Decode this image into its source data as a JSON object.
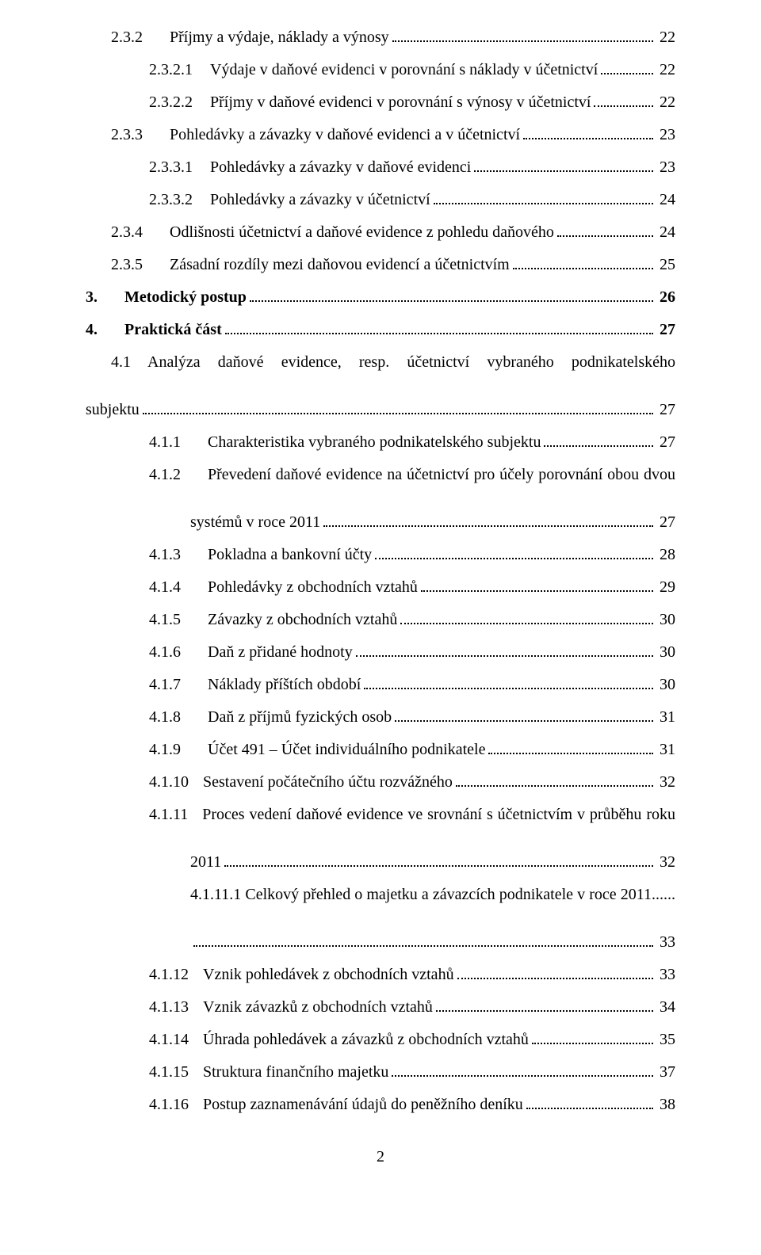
{
  "page_number": "2",
  "style": {
    "font_family": "Times New Roman",
    "font_size_pt": 15,
    "text_color": "#000000",
    "bg_color": "#ffffff",
    "leader_style": "dotted",
    "leader_color": "#000000",
    "line_spacing": 1.5
  },
  "toc": [
    {
      "lvl": "a",
      "num": "2.3.2",
      "label": "Příjmy a výdaje, náklady a výnosy",
      "page": "22"
    },
    {
      "lvl": "b",
      "num": "2.3.2.1",
      "label": "Výdaje v daňové evidenci  v porovnání s  náklady v účetnictví",
      "page": "22"
    },
    {
      "lvl": "b",
      "num": "2.3.2.2",
      "label": "Příjmy v daňové evidenci v porovnání s výnosy v účetnictví",
      "page": "22"
    },
    {
      "lvl": "a",
      "num": "2.3.3",
      "label": "Pohledávky a závazky v daňové evidenci a v účetnictví",
      "page": "23"
    },
    {
      "lvl": "b",
      "num": "2.3.3.1",
      "label": "Pohledávky a závazky v daňové evidenci",
      "page": "23"
    },
    {
      "lvl": "b",
      "num": "2.3.3.2",
      "label": "Pohledávky a závazky v účetnictví",
      "page": "24"
    },
    {
      "lvl": "a",
      "num": "2.3.4",
      "label": "Odlišnosti účetnictví a daňové evidence z pohledu daňového",
      "page": "24"
    },
    {
      "lvl": "a",
      "num": "2.3.5",
      "label": "Zásadní rozdíly mezi daňovou evidencí a účetnictvím",
      "page": "25"
    },
    {
      "lvl": "s",
      "num": "3.",
      "label": "Metodický postup",
      "page": "26",
      "bold": true
    },
    {
      "lvl": "s",
      "num": "4.",
      "label": "Praktická část",
      "page": "27",
      "bold": true
    },
    {
      "lvl": "multi41",
      "num": "4.1",
      "line1": "Analýza daňové evidence, resp. účetnictví vybraného podnikatelského",
      "line2": "subjektu",
      "page": "27"
    },
    {
      "lvl": "d",
      "num": "4.1.1",
      "label": "Charakteristika vybraného podnikatelského subjektu",
      "page": "27"
    },
    {
      "lvl": "multi412",
      "num": "4.1.2",
      "line1": "Převedení daňové evidence na účetnictví pro účely porovnání obou dvou",
      "line2": "systémů v roce 2011",
      "page": "27"
    },
    {
      "lvl": "d",
      "num": "4.1.3",
      "label": "Pokladna a bankovní účty",
      "page": "28"
    },
    {
      "lvl": "d",
      "num": "4.1.4",
      "label": "Pohledávky z obchodních vztahů",
      "page": "29"
    },
    {
      "lvl": "d",
      "num": "4.1.5",
      "label": "Závazky z obchodních vztahů",
      "page": "30"
    },
    {
      "lvl": "d",
      "num": "4.1.6",
      "label": "Daň z přidané hodnoty",
      "page": "30"
    },
    {
      "lvl": "d",
      "num": "4.1.7",
      "label": "Náklady příštích období",
      "page": "30"
    },
    {
      "lvl": "d",
      "num": "4.1.8",
      "label": "Daň z příjmů fyzických osob",
      "page": "31"
    },
    {
      "lvl": "d",
      "num": "4.1.9",
      "label": "Účet 491 – Účet individuálního podnikatele",
      "page": "31"
    },
    {
      "lvl": "f",
      "num": "4.1.10",
      "label": "Sestavení počátečního účtu rozvážného",
      "page": "32"
    },
    {
      "lvl": "multi4111",
      "num": "4.1.11",
      "line1": "Proces vedení daňové evidence ve srovnání s účetnictvím v průběhu roku",
      "line2": "2011",
      "page": "32"
    },
    {
      "lvl": "multi41111",
      "num": "4.1.11.1",
      "line1": "Celkový přehled o majetku a závazcích podnikatele v roce 2011",
      "page": "33"
    },
    {
      "lvl": "f",
      "num": "4.1.12",
      "label": "Vznik pohledávek z obchodních vztahů",
      "page": "33"
    },
    {
      "lvl": "f",
      "num": "4.1.13",
      "label": "Vznik závazků z obchodních vztahů",
      "page": "34"
    },
    {
      "lvl": "f",
      "num": "4.1.14",
      "label": "Úhrada pohledávek a závazků z obchodních vztahů",
      "page": "35"
    },
    {
      "lvl": "f",
      "num": "4.1.15",
      "label": "Struktura finančního majetku",
      "page": "37"
    },
    {
      "lvl": "f",
      "num": "4.1.16",
      "label": "Postup zaznamenávání údajů do peněžního deníku",
      "page": "38"
    }
  ]
}
